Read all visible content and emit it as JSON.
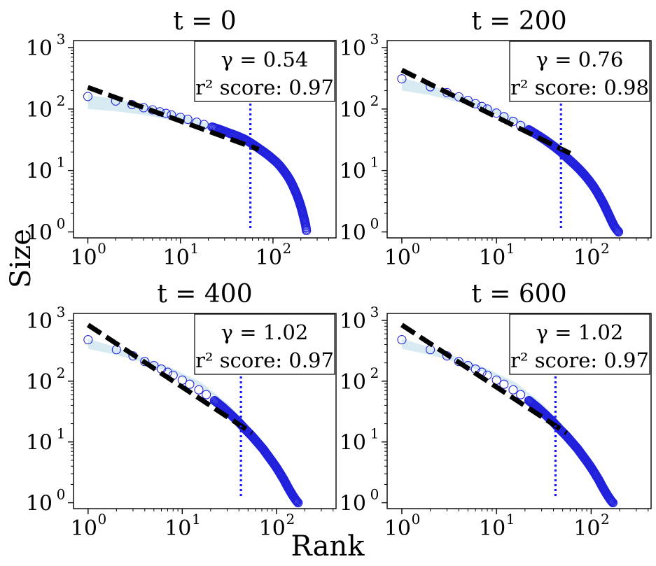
{
  "figure": {
    "xlabel": "Rank",
    "ylabel": "Size"
  },
  "chart_data": [
    {
      "type": "scatter",
      "title": "t = 0",
      "xscale": "log",
      "yscale": "log",
      "xlim": [
        0.7,
        480
      ],
      "ylim": [
        0.8,
        1300
      ],
      "xticks": [
        "10^0",
        "10^1",
        "10^2"
      ],
      "yticks": [
        "10^0",
        "10^1",
        "10^2",
        "10^3"
      ],
      "annotation": {
        "gamma": "γ = 0.54",
        "r2": "r² score: 0.97",
        "legend_position": "top-right"
      },
      "series": [
        {
          "kind": "points",
          "color": "#2222dd",
          "x": [
            1,
            2,
            3,
            4,
            5,
            6,
            7,
            8,
            10,
            12,
            15,
            18,
            22,
            27,
            33,
            40,
            50,
            60,
            70,
            80,
            90,
            100,
            110,
            120,
            130,
            140,
            150,
            160,
            170,
            180,
            190,
            200,
            210,
            220,
            225,
            228,
            230
          ],
          "y": [
            160,
            135,
            118,
            105,
            97,
            90,
            85,
            80,
            73,
            68,
            61,
            56,
            51,
            46,
            41,
            37,
            32,
            27,
            23,
            20,
            17.5,
            15.3,
            13.5,
            11.7,
            10,
            8.6,
            7.3,
            6.1,
            5.0,
            4.1,
            3.3,
            2.6,
            2.0,
            1.5,
            1.3,
            1.15,
            1.05
          ]
        },
        {
          "kind": "power-law fit",
          "style": "dashed",
          "color": "#000000",
          "x": [
            1,
            70
          ],
          "y": [
            225,
            22
          ]
        },
        {
          "kind": "cutoff",
          "style": "dotted",
          "color": "#1a1aff",
          "x": 57
        },
        {
          "kind": "band",
          "color": "#b8d8e8",
          "x": [
            1,
            2,
            4,
            8,
            16,
            32,
            57
          ],
          "lower": [
            100,
            92,
            80,
            66,
            50,
            36,
            24
          ],
          "upper": [
            170,
            145,
            118,
            92,
            66,
            44,
            28
          ]
        }
      ]
    },
    {
      "type": "scatter",
      "title": "t = 200",
      "xscale": "log",
      "yscale": "log",
      "xlim": [
        0.7,
        430
      ],
      "ylim": [
        0.8,
        1300
      ],
      "xticks": [
        "10^0",
        "10^1",
        "10^2"
      ],
      "yticks": [
        "10^0",
        "10^1",
        "10^2",
        "10^3"
      ],
      "annotation": {
        "gamma": "γ = 0.76",
        "r2": "r² score: 0.98",
        "legend_position": "top-right"
      },
      "series": [
        {
          "kind": "points",
          "color": "#2222dd",
          "x": [
            1,
            2,
            3,
            4,
            5,
            6,
            7,
            8,
            10,
            12,
            15,
            18,
            22,
            27,
            33,
            40,
            48,
            56,
            65,
            75,
            85,
            95,
            105,
            115,
            125,
            135,
            145,
            155,
            165,
            175,
            185,
            190,
            195
          ],
          "y": [
            310,
            230,
            185,
            158,
            138,
            122,
            110,
            100,
            86,
            75,
            63,
            54,
            46,
            38,
            31,
            25,
            20,
            16,
            13,
            10.5,
            8.5,
            6.9,
            5.6,
            4.5,
            3.6,
            2.9,
            2.3,
            1.85,
            1.5,
            1.25,
            1.1,
            1.05,
            1.0
          ]
        },
        {
          "kind": "power-law fit",
          "style": "dashed",
          "color": "#000000",
          "x": [
            1,
            60
          ],
          "y": [
            430,
            19
          ]
        },
        {
          "kind": "cutoff",
          "style": "dotted",
          "color": "#1a1aff",
          "x": 48
        },
        {
          "kind": "band",
          "color": "#b8d8e8",
          "x": [
            1,
            2,
            4,
            8,
            16,
            32,
            48
          ],
          "lower": [
            200,
            168,
            128,
            90,
            60,
            35,
            24
          ],
          "upper": [
            320,
            245,
            172,
            115,
            72,
            40,
            26
          ]
        }
      ]
    },
    {
      "type": "scatter",
      "title": "t = 400",
      "xscale": "log",
      "yscale": "log",
      "xlim": [
        0.7,
        430
      ],
      "ylim": [
        0.8,
        1300
      ],
      "xticks": [
        "10^0",
        "10^1",
        "10^2"
      ],
      "yticks": [
        "10^0",
        "10^1",
        "10^2",
        "10^3"
      ],
      "annotation": {
        "gamma": "γ = 1.02",
        "r2": "r² score: 0.97",
        "legend_position": "top-right"
      },
      "series": [
        {
          "kind": "points",
          "color": "#2222dd",
          "x": [
            1,
            2,
            3,
            4,
            5,
            6,
            7,
            8,
            10,
            12,
            15,
            18,
            22,
            27,
            33,
            40,
            47,
            55,
            63,
            72,
            81,
            90,
            100,
            110,
            120,
            130,
            140,
            150,
            160,
            165,
            170
          ],
          "y": [
            480,
            330,
            260,
            210,
            180,
            158,
            140,
            125,
            104,
            89,
            72,
            60,
            48,
            37,
            28,
            21,
            16,
            12.5,
            9.8,
            7.7,
            6.0,
            4.8,
            3.8,
            3.0,
            2.4,
            1.9,
            1.55,
            1.3,
            1.12,
            1.05,
            1.0
          ]
        },
        {
          "kind": "power-law fit",
          "style": "dashed",
          "color": "#000000",
          "x": [
            1,
            55
          ],
          "y": [
            840,
            14
          ]
        },
        {
          "kind": "cutoff",
          "style": "dotted",
          "color": "#1a1aff",
          "x": 42
        },
        {
          "kind": "band",
          "color": "#b8d8e8",
          "x": [
            1,
            2,
            4,
            8,
            16,
            32,
            42
          ],
          "lower": [
            340,
            270,
            200,
            135,
            80,
            35,
            22
          ],
          "upper": [
            500,
            360,
            240,
            160,
            95,
            40,
            24
          ]
        }
      ]
    },
    {
      "type": "scatter",
      "title": "t = 600",
      "xscale": "log",
      "yscale": "log",
      "xlim": [
        0.7,
        430
      ],
      "ylim": [
        0.8,
        1300
      ],
      "xticks": [
        "10^0",
        "10^1",
        "10^2"
      ],
      "yticks": [
        "10^0",
        "10^1",
        "10^2",
        "10^3"
      ],
      "annotation": {
        "gamma": "γ = 1.02",
        "r2": "r² score: 0.97",
        "legend_position": "top-right"
      },
      "series": [
        {
          "kind": "points",
          "color": "#2222dd",
          "x": [
            1,
            2,
            3,
            4,
            5,
            6,
            7,
            8,
            10,
            12,
            15,
            18,
            22,
            27,
            33,
            40,
            47,
            55,
            63,
            72,
            81,
            90,
            100,
            110,
            120,
            130,
            140,
            150,
            160,
            165,
            170
          ],
          "y": [
            480,
            330,
            260,
            210,
            180,
            158,
            140,
            125,
            104,
            89,
            72,
            60,
            48,
            37,
            28,
            21,
            16,
            12.5,
            9.8,
            7.7,
            6.0,
            4.8,
            3.8,
            3.0,
            2.4,
            1.9,
            1.55,
            1.3,
            1.12,
            1.05,
            1.0
          ]
        },
        {
          "kind": "power-law fit",
          "style": "dashed",
          "color": "#000000",
          "x": [
            1,
            55
          ],
          "y": [
            840,
            14
          ]
        },
        {
          "kind": "cutoff",
          "style": "dotted",
          "color": "#1a1aff",
          "x": 42
        },
        {
          "kind": "band",
          "color": "#b8d8e8",
          "x": [
            1,
            2,
            4,
            8,
            16,
            32,
            42
          ],
          "lower": [
            340,
            270,
            200,
            135,
            80,
            35,
            22
          ],
          "upper": [
            500,
            360,
            240,
            160,
            95,
            40,
            24
          ]
        }
      ]
    }
  ]
}
